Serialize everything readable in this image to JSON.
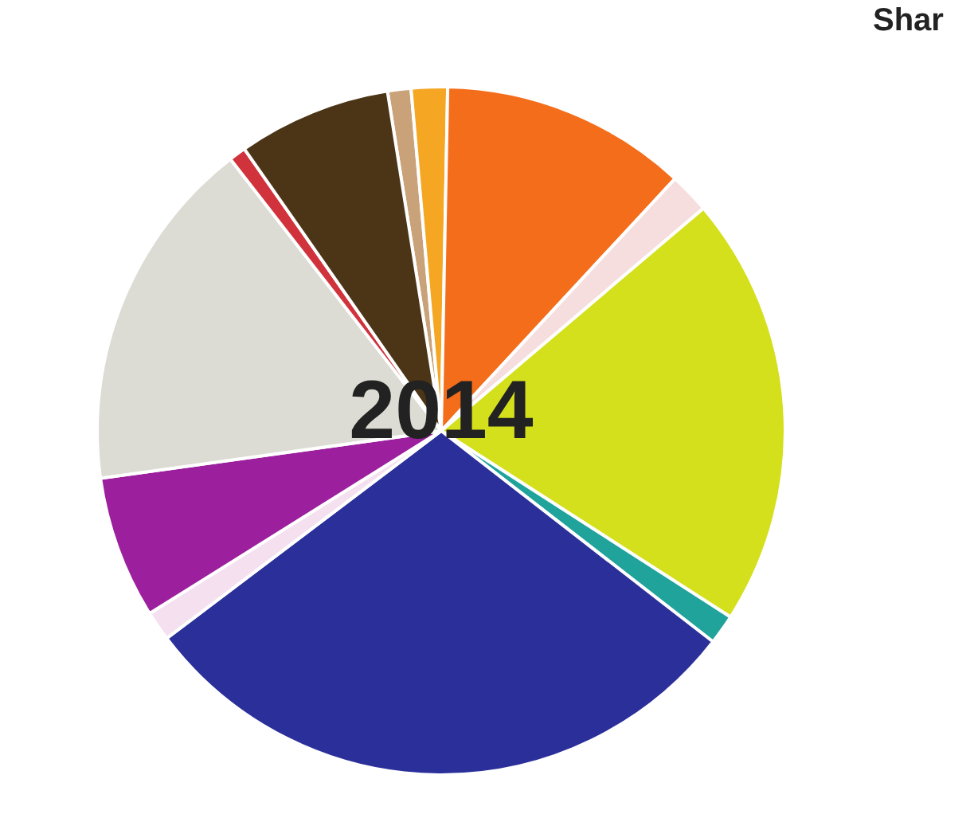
{
  "chart_data": {
    "type": "pie",
    "title": "Shar",
    "annotations": [
      "2014"
    ],
    "categories": [
      null,
      null,
      null,
      null,
      null,
      null,
      null,
      null,
      null,
      null,
      null,
      null
    ],
    "values": [
      1.1,
      1.7,
      11.6,
      1.9,
      20.3,
      1.4,
      29.2,
      1.4,
      6.7,
      16.7,
      0.8,
      7.2
    ],
    "colors": [
      "#c9a27a",
      "#f5a623",
      "#f46d1b",
      "#f6dede",
      "#d4e01c",
      "#1fa39a",
      "#2b2f9a",
      "#f5e0f0",
      "#9c1f9e",
      "#dcdcd4",
      "#d0333b",
      "#4b3516"
    ],
    "legend": false
  }
}
